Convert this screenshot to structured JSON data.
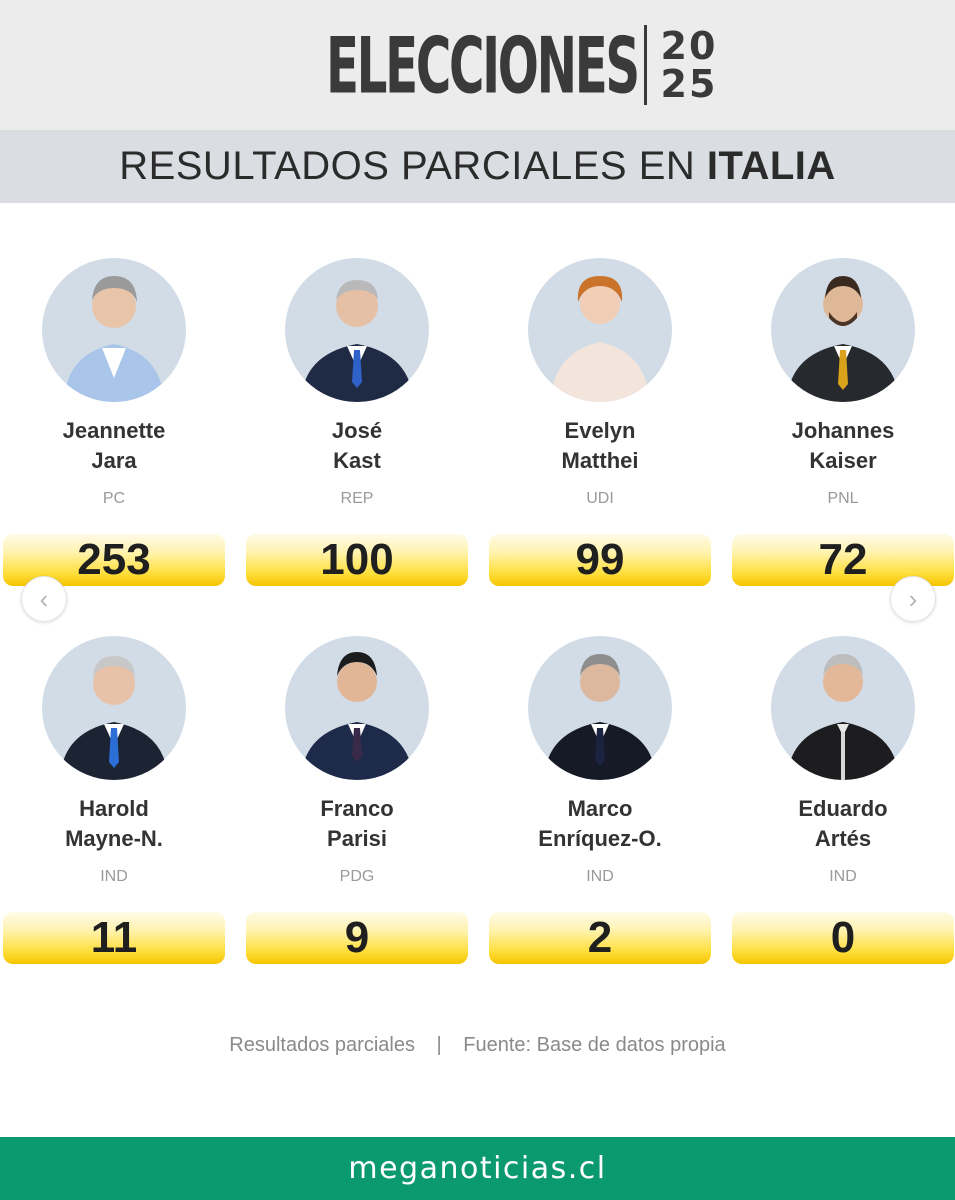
{
  "header": {
    "logo_word": "ELECCIONES",
    "logo_year_top": "20",
    "logo_year_bottom": "25",
    "subtitle_prefix": "RESULTADOS PARCIALES EN",
    "subtitle_country": "ITALIA"
  },
  "colors": {
    "header_bg": "#ececec",
    "subheader_bg": "#dadde2",
    "vote_box_yellow": "#ffdf3e",
    "footer_green": "#0b9a6f",
    "avatar_bg": "#d2dce6"
  },
  "candidates": [
    {
      "first": "Jeannette",
      "last": "Jara",
      "party": "PC",
      "votes": "253"
    },
    {
      "first": "José",
      "last": "Kast",
      "party": "REP",
      "votes": "100"
    },
    {
      "first": "Evelyn",
      "last": "Matthei",
      "party": "UDI",
      "votes": "99"
    },
    {
      "first": "Johannes",
      "last": "Kaiser",
      "party": "PNL",
      "votes": "72"
    },
    {
      "first": "Harold",
      "last": "Mayne-N.",
      "party": "IND",
      "votes": "11"
    },
    {
      "first": "Franco",
      "last": "Parisi",
      "party": "PDG",
      "votes": "9"
    },
    {
      "first": "Marco",
      "last": "Enríquez-O.",
      "party": "IND",
      "votes": "2"
    },
    {
      "first": "Eduardo",
      "last": "Artés",
      "party": "IND",
      "votes": "0"
    }
  ],
  "nav": {
    "prev_icon": "chevron-left-icon",
    "next_icon": "chevron-right-icon",
    "prev": "‹",
    "next": "›"
  },
  "footnote": {
    "left": "Resultados parciales",
    "separator": "|",
    "right": "Fuente: Base de datos propia"
  },
  "footer": {
    "brand": "meganoticias.cl"
  }
}
